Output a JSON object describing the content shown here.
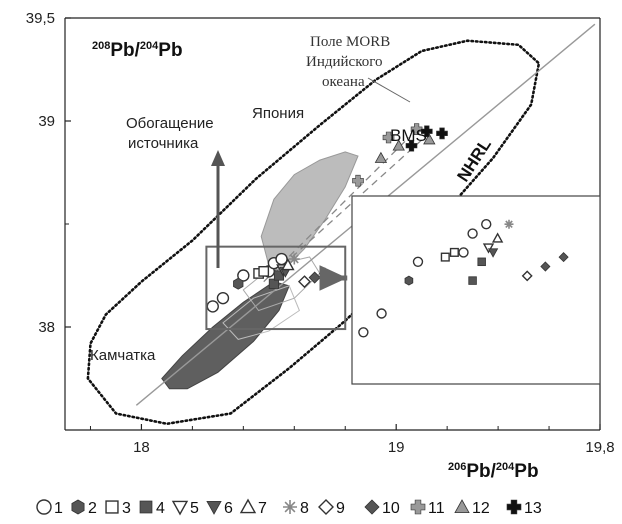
{
  "chart_data": {
    "type": "scatter",
    "title": "",
    "y_axis_title": {
      "sup1": "208",
      "base1": "Pb/",
      "sup2": "204",
      "base2": "Pb"
    },
    "x_axis_title": {
      "sup1": "206",
      "base1": "Pb/",
      "sup2": "204",
      "base2": "Pb"
    },
    "xlim": [
      17.7,
      19.8
    ],
    "ylim": [
      37.5,
      39.5
    ],
    "x_ticks": [
      {
        "value": 18,
        "label": "18"
      },
      {
        "value": 19,
        "label": "19"
      },
      {
        "value": 19.8,
        "label": "19,8"
      }
    ],
    "y_ticks": [
      {
        "value": 38,
        "label": "38"
      },
      {
        "value": 39,
        "label": "39"
      },
      {
        "value": 39.5,
        "label": "39,5"
      }
    ],
    "y_minor": [
      38.5
    ],
    "x_minor": [
      17.8,
      18.2,
      18.4,
      18.6,
      18.8,
      19.2,
      19.4,
      19.6
    ],
    "annotations": {
      "morb_line1": "Поле MORB",
      "morb_line2": "Индийского",
      "morb_line3": "океана",
      "japan": "Япония",
      "enrich_line1": "Обогащение",
      "enrich_line2": "источника",
      "bms": "BMS",
      "nhrl": "NHRL",
      "kamchatka": "Камчатка"
    },
    "legend": [
      {
        "id": "1",
        "label": "1",
        "marker": "circle-open",
        "color": "#333333"
      },
      {
        "id": "2",
        "label": "2",
        "marker": "hexagon-filled",
        "color": "#555555"
      },
      {
        "id": "3",
        "label": "3",
        "marker": "square-open",
        "color": "#333333"
      },
      {
        "id": "4",
        "label": "4",
        "marker": "square-filled",
        "color": "#555555"
      },
      {
        "id": "5",
        "label": "5",
        "marker": "triangle-down-open",
        "color": "#333333"
      },
      {
        "id": "6",
        "label": "6",
        "marker": "triangle-down-filled",
        "color": "#555555"
      },
      {
        "id": "7",
        "label": "7",
        "marker": "triangle-up-open",
        "color": "#333333"
      },
      {
        "id": "8",
        "label": "8",
        "marker": "star",
        "color": "#888888"
      },
      {
        "id": "9",
        "label": "9",
        "marker": "diamond-open",
        "color": "#333333"
      },
      {
        "id": "10",
        "label": "10",
        "marker": "diamond-filled",
        "color": "#555555"
      },
      {
        "id": "11",
        "label": "11",
        "marker": "cross-filled",
        "color": "#999999"
      },
      {
        "id": "12",
        "label": "12",
        "marker": "triangle-up-filled",
        "color": "#999999"
      },
      {
        "id": "13",
        "label": "13",
        "marker": "cross-filled",
        "color": "#111111"
      }
    ],
    "points": [
      {
        "g": "1",
        "x": 18.28,
        "y": 38.1
      },
      {
        "g": "1",
        "x": 18.32,
        "y": 38.14
      },
      {
        "g": "1",
        "x": 18.4,
        "y": 38.25
      },
      {
        "g": "1",
        "x": 18.5,
        "y": 38.27
      },
      {
        "g": "1",
        "x": 18.52,
        "y": 38.31
      },
      {
        "g": "1",
        "x": 18.55,
        "y": 38.33
      },
      {
        "g": "2",
        "x": 18.38,
        "y": 38.21
      },
      {
        "g": "3",
        "x": 18.46,
        "y": 38.26
      },
      {
        "g": "3",
        "x": 18.48,
        "y": 38.27
      },
      {
        "g": "4",
        "x": 18.52,
        "y": 38.21
      },
      {
        "g": "4",
        "x": 18.54,
        "y": 38.25
      },
      {
        "g": "5",
        "x": 18.555,
        "y": 38.28
      },
      {
        "g": "6",
        "x": 18.565,
        "y": 38.27
      },
      {
        "g": "7",
        "x": 18.575,
        "y": 38.3
      },
      {
        "g": "8",
        "x": 18.6,
        "y": 38.33
      },
      {
        "g": "9",
        "x": 18.64,
        "y": 38.22
      },
      {
        "g": "10",
        "x": 18.68,
        "y": 38.24
      },
      {
        "g": "10",
        "x": 18.72,
        "y": 38.26
      },
      {
        "g": "11",
        "x": 18.85,
        "y": 38.71
      },
      {
        "g": "11",
        "x": 18.97,
        "y": 38.92
      },
      {
        "g": "11",
        "x": 19.08,
        "y": 38.96
      },
      {
        "g": "12",
        "x": 18.94,
        "y": 38.82
      },
      {
        "g": "12",
        "x": 19.01,
        "y": 38.88
      },
      {
        "g": "12",
        "x": 19.13,
        "y": 38.91
      },
      {
        "g": "13",
        "x": 19.06,
        "y": 38.88
      },
      {
        "g": "13",
        "x": 19.12,
        "y": 38.95
      },
      {
        "g": "13",
        "x": 19.18,
        "y": 38.94
      }
    ]
  },
  "legend_numbers": [
    "1",
    "2",
    "3",
    "4",
    "5",
    "6",
    "7",
    "8",
    "9",
    "10",
    "11",
    "12",
    "13"
  ]
}
